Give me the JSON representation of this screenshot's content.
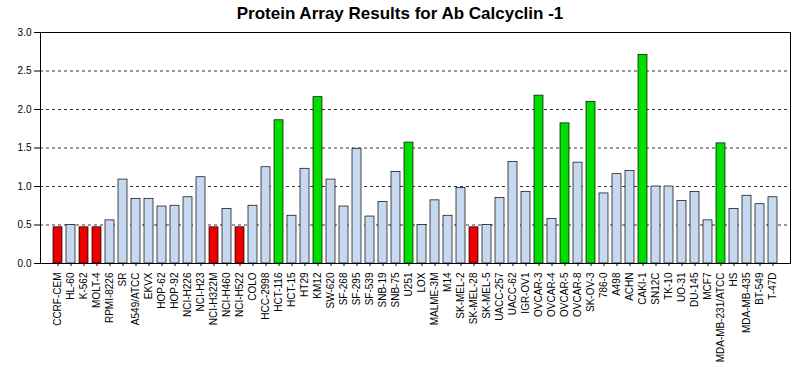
{
  "chart_data": {
    "type": "bar",
    "title": "Protein Array Results for Ab Calcyclin -1",
    "categories": [
      "CCRF-CEM",
      "HL-60",
      "K-562",
      "MOLT-4",
      "RPMI-8226",
      "SR",
      "A549/ATCC",
      "EKVX",
      "HOP-62",
      "HOP-92",
      "NCI-H226",
      "NCI-H23",
      "NCI-H322M",
      "NCI-H460",
      "NCI-H522",
      "COLO",
      "HCC-2998",
      "HCT-116",
      "HCT-15",
      "HT29",
      "KM12",
      "SW-620",
      "SF-268",
      "SF-295",
      "SF-539",
      "SNB-19",
      "SNB-75",
      "U251",
      "LOX",
      "MALME-3M",
      "M14",
      "SK-MEL-2",
      "SK-MEL-28",
      "SK-MEL-5",
      "UACC-257",
      "UACC-62",
      "IGR-OV1",
      "OVCAR-3",
      "OVCAR-4",
      "OVCAR-5",
      "OVCAR-8",
      "SK-OV-3",
      "786-0",
      "A498",
      "ACHN",
      "CAKI-1",
      "SN12C",
      "TK-10",
      "UO-31",
      "DU-145",
      "MCF7",
      "MDA-MB-231/ATCC",
      "HS",
      "MDA-MB-435",
      "BT-549",
      "T-47D"
    ],
    "values": [
      0.47,
      0.5,
      0.47,
      0.47,
      0.56,
      1.09,
      0.84,
      0.84,
      0.74,
      0.75,
      0.86,
      1.12,
      0.47,
      0.71,
      0.47,
      0.75,
      1.25,
      1.86,
      0.62,
      1.23,
      2.16,
      1.09,
      0.74,
      1.49,
      0.61,
      0.8,
      1.19,
      1.57,
      0.5,
      0.82,
      0.62,
      0.98,
      0.47,
      0.5,
      0.85,
      1.32,
      0.93,
      2.18,
      0.58,
      1.82,
      1.31,
      2.1,
      0.91,
      1.16,
      1.2,
      2.71,
      1.0,
      1.0,
      0.81,
      0.93,
      0.56,
      1.56,
      0.71,
      0.88,
      0.77,
      0.86
    ],
    "colors": [
      "#ee0000",
      "#c6d9f1",
      "#ee0000",
      "#ee0000",
      "#c6d9f1",
      "#c6d9f1",
      "#c6d9f1",
      "#c6d9f1",
      "#c6d9f1",
      "#c6d9f1",
      "#c6d9f1",
      "#c6d9f1",
      "#ee0000",
      "#c6d9f1",
      "#ee0000",
      "#c6d9f1",
      "#c6d9f1",
      "#00dd00",
      "#c6d9f1",
      "#c6d9f1",
      "#00dd00",
      "#c6d9f1",
      "#c6d9f1",
      "#c6d9f1",
      "#c6d9f1",
      "#c6d9f1",
      "#c6d9f1",
      "#00dd00",
      "#c6d9f1",
      "#c6d9f1",
      "#c6d9f1",
      "#c6d9f1",
      "#ee0000",
      "#c6d9f1",
      "#c6d9f1",
      "#c6d9f1",
      "#c6d9f1",
      "#00dd00",
      "#c6d9f1",
      "#00dd00",
      "#c6d9f1",
      "#00dd00",
      "#c6d9f1",
      "#c6d9f1",
      "#c6d9f1",
      "#00dd00",
      "#c6d9f1",
      "#c6d9f1",
      "#c6d9f1",
      "#c6d9f1",
      "#c6d9f1",
      "#00dd00",
      "#c6d9f1",
      "#c6d9f1",
      "#c6d9f1",
      "#c6d9f1"
    ],
    "ylim": [
      0,
      3
    ],
    "yticks": [
      {
        "value": 0,
        "label": "0.0"
      },
      {
        "value": 0.5,
        "label": "0.5"
      },
      {
        "value": 1,
        "label": "1.0"
      },
      {
        "value": 1.5,
        "label": "1.5"
      },
      {
        "value": 2,
        "label": "2.0"
      },
      {
        "value": 2.5,
        "label": "2.5"
      },
      {
        "value": 3,
        "label": "3.0"
      }
    ],
    "grid": true
  }
}
